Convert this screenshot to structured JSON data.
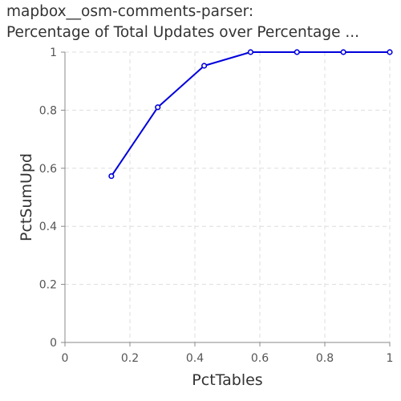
{
  "chart_data": {
    "type": "line",
    "title_lines": [
      "mapbox__osm-comments-parser:",
      "Percentage of Total Updates over Percentage ..."
    ],
    "xlabel": "PctTables",
    "ylabel": "PctSumUpd",
    "xlim": [
      0,
      1
    ],
    "ylim": [
      0,
      1
    ],
    "x_ticks": [
      "0",
      "0.2",
      "0.4",
      "0.6",
      "0.8",
      "1"
    ],
    "y_ticks": [
      "0",
      "0.2",
      "0.4",
      "0.6",
      "0.8",
      "1"
    ],
    "grid": true,
    "series": [
      {
        "color": "#0000dd",
        "x": [
          0.1429,
          0.2857,
          0.4286,
          0.5714,
          0.7143,
          0.8571,
          1.0
        ],
        "y": [
          0.573,
          0.81,
          0.953,
          1.0,
          1.0,
          1.0,
          1.0
        ]
      }
    ]
  }
}
